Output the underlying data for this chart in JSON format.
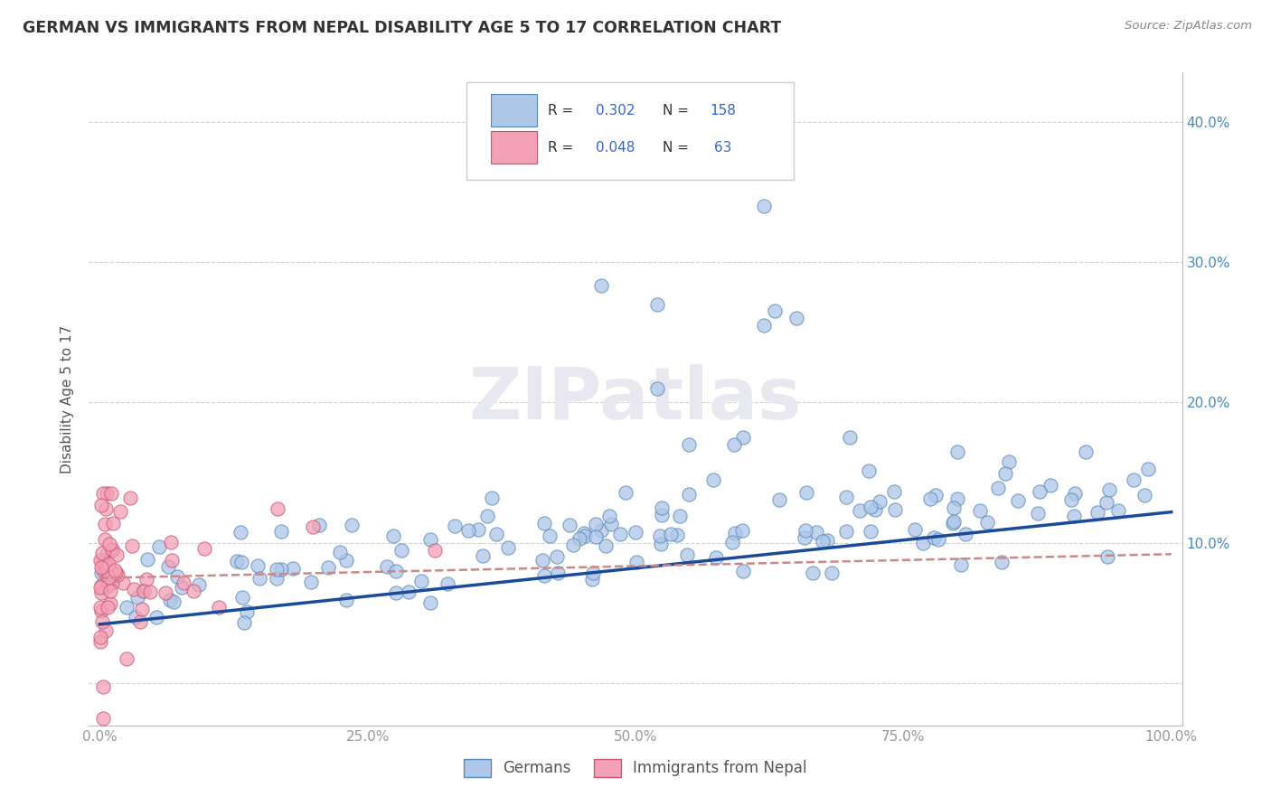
{
  "title": "GERMAN VS IMMIGRANTS FROM NEPAL DISABILITY AGE 5 TO 17 CORRELATION CHART",
  "source": "Source: ZipAtlas.com",
  "ylabel": "Disability Age 5 to 17",
  "x_min": -0.01,
  "x_max": 1.01,
  "y_min": -0.03,
  "y_max": 0.435,
  "x_ticks": [
    0.0,
    0.25,
    0.5,
    0.75,
    1.0
  ],
  "x_tick_labels": [
    "0.0%",
    "25.0%",
    "50.0%",
    "75.0%",
    "100.0%"
  ],
  "y_ticks": [
    0.0,
    0.1,
    0.2,
    0.3,
    0.4
  ],
  "y_tick_labels_right": [
    "",
    "10.0%",
    "20.0%",
    "30.0%",
    "40.0%"
  ],
  "german_R": 0.302,
  "german_N": 158,
  "nepal_R": 0.048,
  "nepal_N": 63,
  "german_color": "#aec6e8",
  "german_edge_color": "#5588bb",
  "nepal_color": "#f4a0b5",
  "nepal_edge_color": "#cc5577",
  "regression_line_german_color": "#1a4a9a",
  "regression_line_nepal_color": "#cc8888",
  "legend_german": "Germans",
  "legend_nepal": "Immigrants from Nepal",
  "watermark": "ZIPatlas",
  "background_color": "#ffffff",
  "grid_color": "#cccccc",
  "title_color": "#333333",
  "axis_label_color": "#555555",
  "tick_label_color": "#999999",
  "right_tick_color": "#4488cc",
  "blue_text_color": "#3366cc"
}
